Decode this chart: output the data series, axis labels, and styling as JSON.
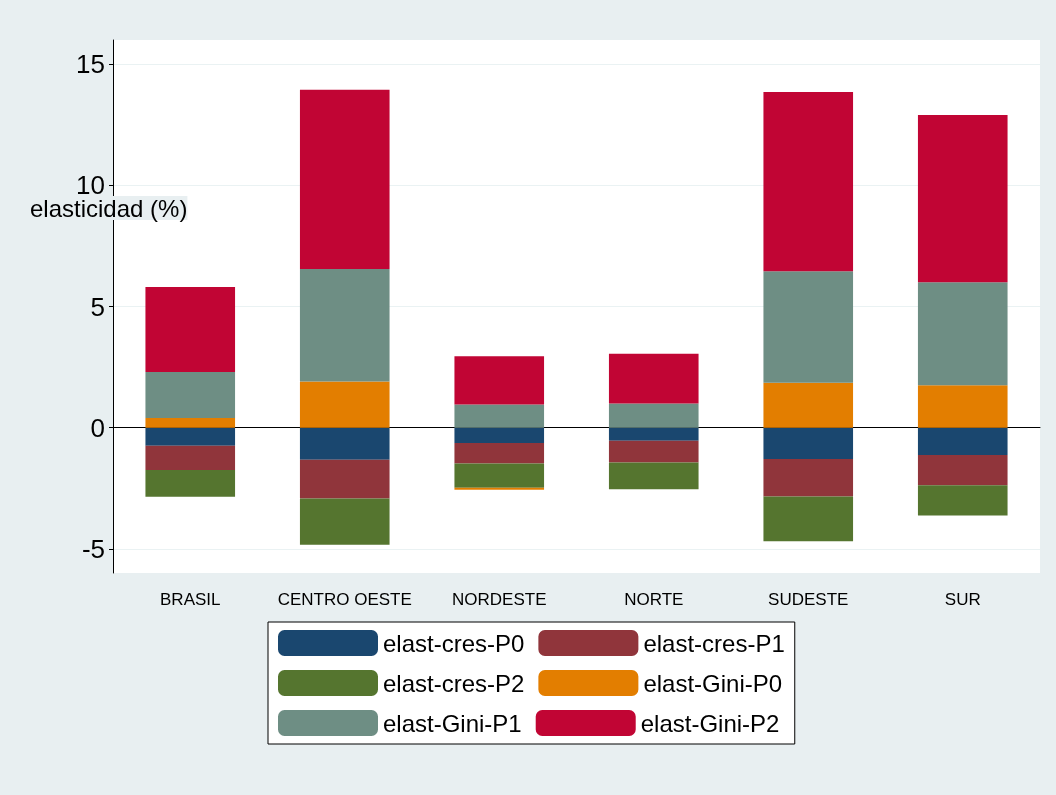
{
  "chart_data": {
    "type": "bar",
    "stacked": true,
    "ylabel": "elasticidad (%)",
    "categories": [
      "BRASIL",
      "CENTRO OESTE",
      "NORDESTE",
      "NORTE",
      "SUDESTE",
      "SUR"
    ],
    "ylim": [
      -6,
      16
    ],
    "yticks": [
      -5,
      0,
      5,
      10,
      15
    ],
    "grid": "y",
    "legend": "bottom",
    "series": [
      {
        "name": "elast-cres-P0",
        "color": "#1a476f",
        "values": [
          -0.75,
          -1.33,
          -0.63,
          -0.54,
          -1.29,
          -1.13
        ]
      },
      {
        "name": "elast-cres-P1",
        "color": "#90353b",
        "values": [
          -1.0,
          -1.6,
          -0.85,
          -0.9,
          -1.55,
          -1.25
        ]
      },
      {
        "name": "elast-cres-P2",
        "color": "#55752f",
        "values": [
          -1.1,
          -1.9,
          -1.0,
          -1.1,
          -1.85,
          -1.25
        ]
      },
      {
        "name": "elast-Gini-P0",
        "color": "#e37e00",
        "values": [
          0.4,
          1.9,
          -0.08,
          0,
          1.85,
          1.75
        ]
      },
      {
        "name": "elast-Gini-P1",
        "color": "#6e8e84",
        "values": [
          1.9,
          4.65,
          0.95,
          1.0,
          4.6,
          4.25
        ]
      },
      {
        "name": "elast-Gini-P2",
        "color": "#c10534",
        "values": [
          3.5,
          7.4,
          2.0,
          2.05,
          7.4,
          6.9
        ]
      }
    ]
  }
}
